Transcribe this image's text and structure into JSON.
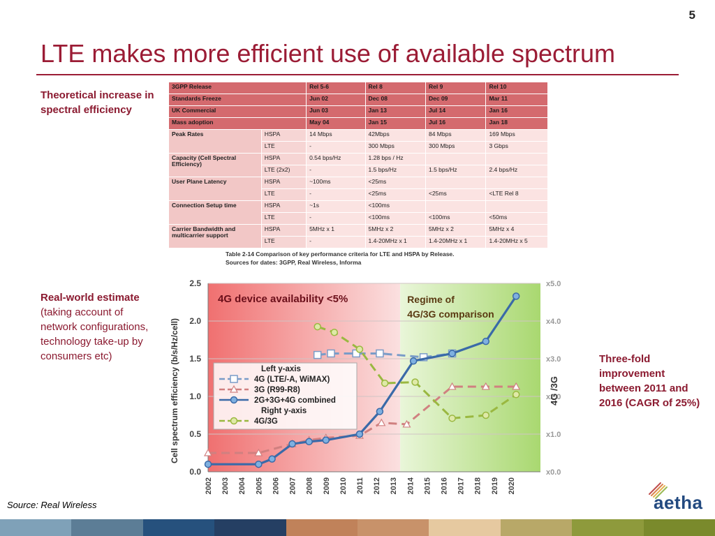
{
  "page_number": "5",
  "title": "LTE makes more efficient use of available spectrum",
  "notes": {
    "theoretical": "Theoretical increase in spectral efficiency",
    "realworld_bold": "Real-world estimate",
    "realworld_rest": " (taking account of network configurations, technology take-up by consumers etc)",
    "threefold": "Three-fold improvement between 2011 and 2016 (CAGR of 25%)"
  },
  "source": "Source: Real Wireless",
  "logo_text": "aetha",
  "colors": {
    "title": "#9b1c35",
    "footer": [
      "#7fa1b8",
      "#5c7d96",
      "#26517d",
      "#253f63",
      "#c0825a",
      "#c8926a",
      "#e6c9a0",
      "#b8a868",
      "#8e9a3c",
      "#7a8a2c"
    ]
  },
  "table": {
    "header": {
      "label": "3GPP Release",
      "tech": "",
      "cols": [
        "Rel 5-6",
        "Rel 8",
        "Rel 9",
        "Rel 10"
      ]
    },
    "top_rows": [
      {
        "label": "Standards Freeze",
        "cols": [
          "Jun 02",
          "Dec 08",
          "Dec 09",
          "Mar 11"
        ]
      },
      {
        "label": "UK Commercial",
        "cols": [
          "Jun 03",
          "Jan 13",
          "Jul 14",
          "Jan 16"
        ]
      },
      {
        "label": "Mass adoption",
        "cols": [
          "May 04",
          "Jan 15",
          "Jul 16",
          "Jan 18"
        ]
      }
    ],
    "groups": [
      {
        "label": "Peak Rates",
        "rows": [
          {
            "tech": "HSPA",
            "cols": [
              "14 Mbps",
              "42Mbps",
              "84 Mbps",
              "169 Mbps"
            ]
          },
          {
            "tech": "LTE",
            "cols": [
              "-",
              "300 Mbps",
              "300 Mbps",
              "3 Gbps"
            ]
          }
        ]
      },
      {
        "label": "Capacity (Cell Spectral Efficiency)",
        "rows": [
          {
            "tech": "HSPA",
            "cols": [
              "0.54 bps/Hz",
              "1.28 bps / Hz",
              "",
              ""
            ]
          },
          {
            "tech": "LTE (2x2)",
            "cols": [
              "-",
              "1.5 bps/Hz",
              "1.5 bps/Hz",
              "2.4 bps/Hz"
            ]
          }
        ]
      },
      {
        "label": "User Plane Latency",
        "rows": [
          {
            "tech": "HSPA",
            "cols": [
              "~100ms",
              "<25ms",
              "",
              ""
            ]
          },
          {
            "tech": "LTE",
            "cols": [
              "-",
              "<25ms",
              "<25ms",
              "<LTE Rel 8"
            ]
          }
        ]
      },
      {
        "label": "Connection Setup time",
        "rows": [
          {
            "tech": "HSPA",
            "cols": [
              "~1s",
              "<100ms",
              "",
              ""
            ]
          },
          {
            "tech": "LTE",
            "cols": [
              "-",
              "<100ms",
              "<100ms",
              "<50ms"
            ]
          }
        ]
      },
      {
        "label": "Carrier Bandwidth and multicarrier support",
        "rows": [
          {
            "tech": "HSPA",
            "cols": [
              "5MHz x 1",
              "5MHz x 2",
              "5MHz x 2",
              "5MHz x 4"
            ]
          },
          {
            "tech": "LTE",
            "cols": [
              "-",
              "1.4-20MHz x 1",
              "1.4-20MHz x 1",
              "1.4-20MHz x 5"
            ]
          }
        ]
      }
    ],
    "caption_line1": "Table 2-14 Comparison of key performance criteria for LTE and HSPA by Release.",
    "caption_line2": "Sources for dates: 3GPP, Real Wireless, Informa"
  },
  "chart_data": {
    "type": "line",
    "categories": [
      "2002",
      "2003",
      "2004",
      "2005",
      "2006",
      "2007",
      "2008",
      "2009",
      "2010",
      "2011",
      "2012",
      "2013",
      "2014",
      "2015",
      "2016",
      "2017",
      "2018",
      "2019",
      "2020"
    ],
    "ylabel": "Cell spectrum efficiency   (b/s/Hz/cell)",
    "y2label": "4G /3G",
    "ylim": [
      0,
      2.5
    ],
    "yticks": [
      "0.0",
      "0.5",
      "1.0",
      "1.5",
      "2.0",
      "2.5"
    ],
    "y2lim": [
      0,
      5
    ],
    "y2ticks": [
      "x0.0",
      "x1.0",
      "x2.0",
      "x3.0",
      "x4.0",
      "x5.0"
    ],
    "regions": [
      {
        "label": "4G device availability <5%",
        "from": "2002",
        "to": "2013",
        "color": "#f08a8a"
      },
      {
        "label": "Regime of 4G/3G comparison",
        "from": "2013",
        "to": "2020",
        "color": "#b8e08a"
      }
    ],
    "legend": {
      "left_axis_title": "Left y-axis",
      "right_axis_title": "Right y-axis",
      "placement": "center-left"
    },
    "series": [
      {
        "name": "4G (LTE/-A, WiMAX)",
        "axis": "left",
        "color": "#7a9cc8",
        "style": "dashed",
        "marker": "square",
        "points": [
          [
            2008.5,
            1.55
          ],
          [
            2009.3,
            1.57
          ],
          [
            2010.8,
            1.57
          ],
          [
            2012.2,
            1.57
          ],
          [
            2014.8,
            1.52
          ],
          [
            2016.5,
            1.57
          ]
        ]
      },
      {
        "name": "3G (R99-R8)",
        "axis": "left",
        "color": "#d08080",
        "style": "dashed",
        "marker": "triangle",
        "points": [
          [
            2002,
            0.25
          ],
          [
            2005,
            0.25
          ],
          [
            2007,
            0.37
          ],
          [
            2008,
            0.42
          ],
          [
            2009,
            0.45
          ],
          [
            2011,
            0.48
          ],
          [
            2012.3,
            0.65
          ],
          [
            2013.8,
            0.63
          ],
          [
            2016.5,
            1.13
          ],
          [
            2018.5,
            1.13
          ],
          [
            2020.3,
            1.13
          ]
        ]
      },
      {
        "name": "2G+3G+4G combined",
        "axis": "left",
        "color": "#3a6aa8",
        "style": "solid",
        "marker": "circle",
        "points": [
          [
            2002,
            0.1
          ],
          [
            2005,
            0.1
          ],
          [
            2005.8,
            0.17
          ],
          [
            2007,
            0.37
          ],
          [
            2008,
            0.4
          ],
          [
            2009,
            0.42
          ],
          [
            2011,
            0.5
          ],
          [
            2012.2,
            0.8
          ],
          [
            2014.2,
            1.47
          ],
          [
            2016.5,
            1.57
          ],
          [
            2018.5,
            1.73
          ],
          [
            2020.3,
            2.33
          ]
        ]
      },
      {
        "name": "4G/3G",
        "axis": "right",
        "color": "#9ab840",
        "style": "dashed",
        "marker": "circle",
        "points": [
          [
            2008.5,
            3.85
          ],
          [
            2009.5,
            3.7
          ],
          [
            2011,
            3.25
          ],
          [
            2012.5,
            2.35
          ],
          [
            2014.3,
            2.38
          ],
          [
            2016.5,
            1.42
          ],
          [
            2018.5,
            1.5
          ],
          [
            2020.3,
            2.05
          ]
        ]
      }
    ]
  }
}
